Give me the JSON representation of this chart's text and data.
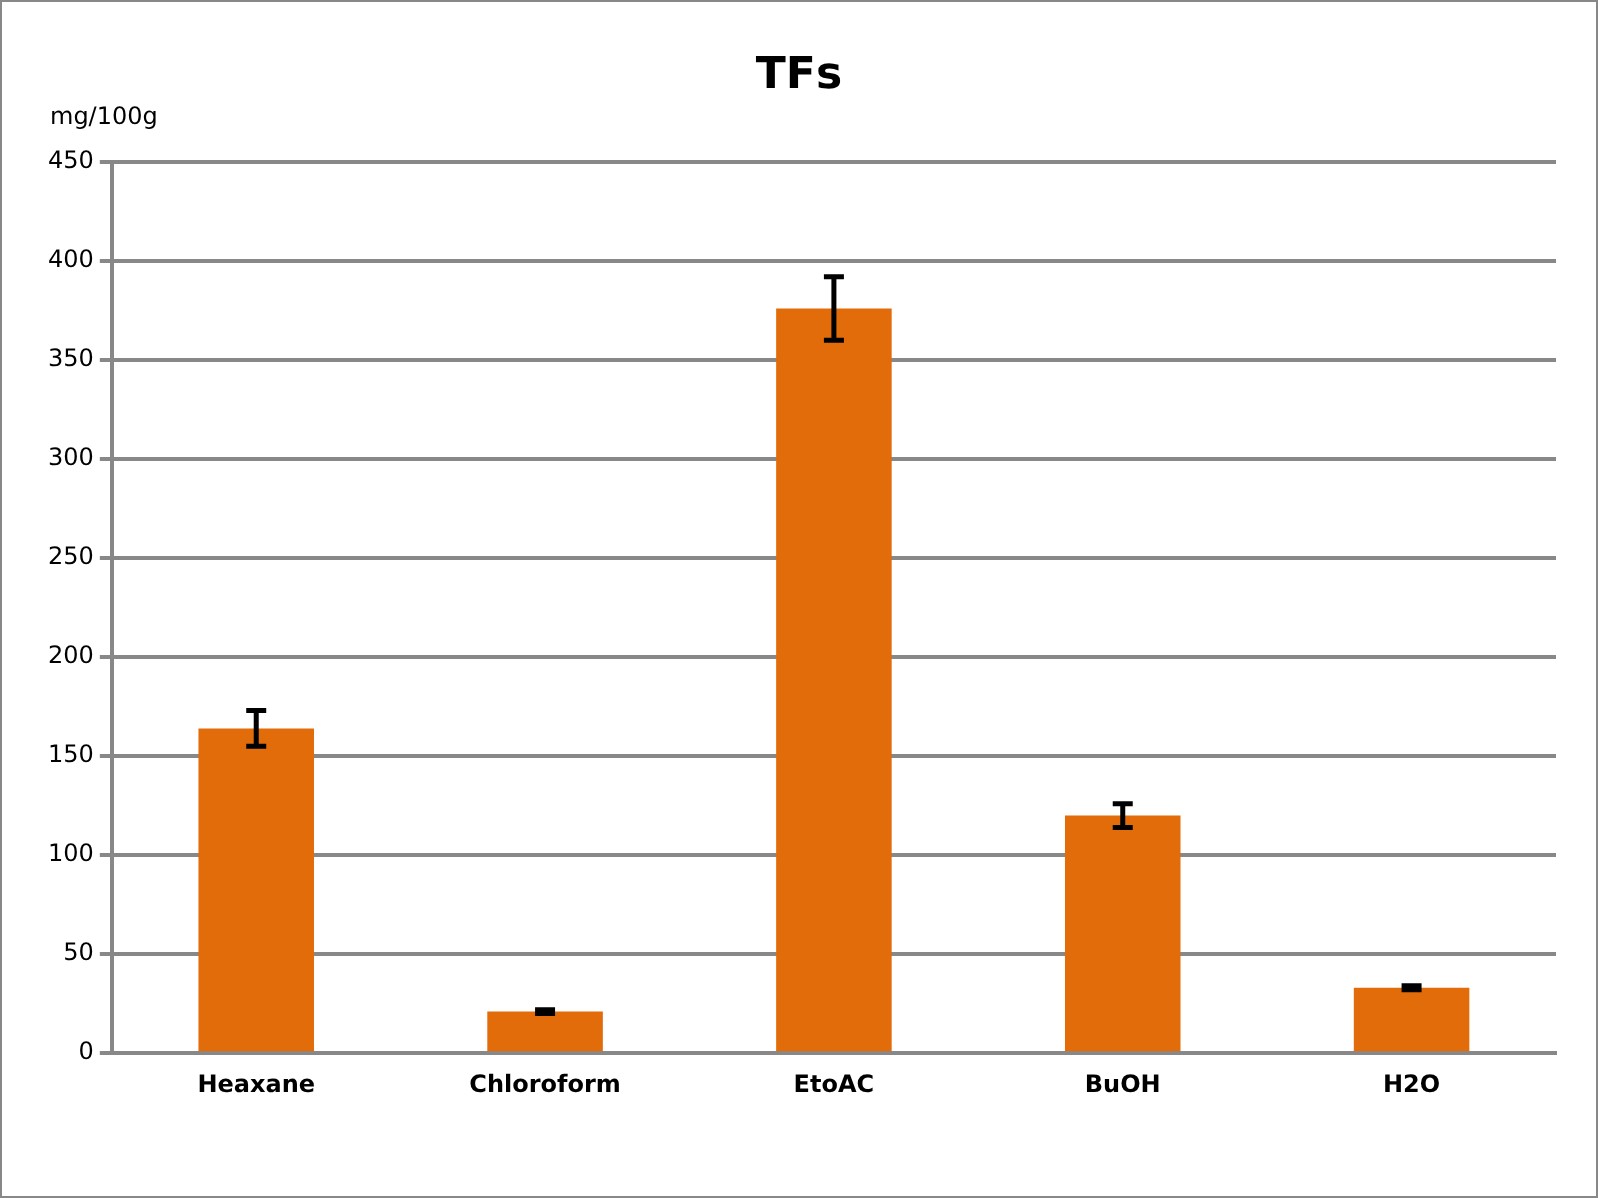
{
  "chart_data": {
    "type": "bar",
    "title": "TFs",
    "ylabel": "mg/100g",
    "categories": [
      "Heaxane",
      "Chloroform",
      "EtoAC",
      "BuOH",
      "H2O"
    ],
    "values": [
      164,
      21,
      376,
      120,
      33
    ],
    "errors": [
      9,
      1,
      16,
      6,
      1
    ],
    "color": "#e36c0a",
    "ylim": [
      0,
      450
    ],
    "yticks": [
      0,
      50,
      100,
      150,
      200,
      250,
      300,
      350,
      400,
      450
    ],
    "grid": "y"
  }
}
